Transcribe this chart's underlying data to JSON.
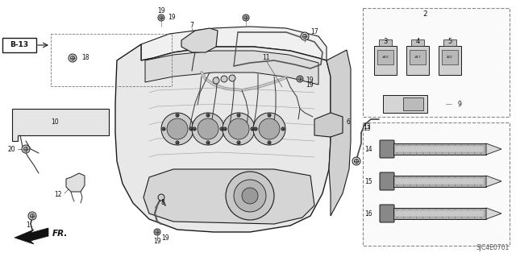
{
  "bg_color": "#ffffff",
  "fig_width": 6.4,
  "fig_height": 3.19,
  "dpi": 100,
  "diagram_code": "SJC4E0701",
  "line_color": "#1a1a1a",
  "gray_light": "#cccccc",
  "gray_mid": "#888888",
  "gray_dark": "#444444",
  "font_size": 7.0,
  "small_font": 5.5
}
